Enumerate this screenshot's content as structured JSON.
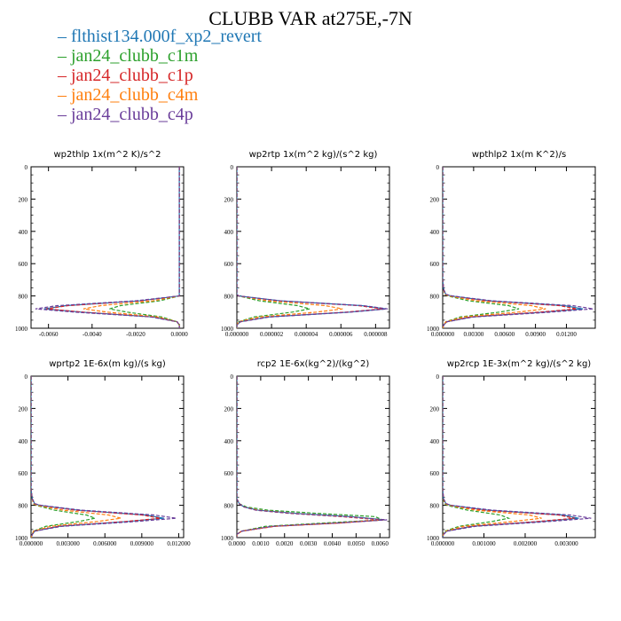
{
  "title": "CLUBB VAR at275E,-7N",
  "legend": [
    {
      "name": "flthist134.000f_xp2_revert",
      "color": "#1f77b4",
      "style": "solid"
    },
    {
      "name": "jan24_clubb_c1m",
      "color": "#2ca02c",
      "style": "dashed"
    },
    {
      "name": "jan24_clubb_c1p",
      "color": "#d62728",
      "style": "dashed"
    },
    {
      "name": "jan24_clubb_c4m",
      "color": "#ff7f0e",
      "style": "dashed"
    },
    {
      "name": "jan24_clubb_c4p",
      "color": "#6a3d9a",
      "style": "dashed"
    }
  ],
  "chart_data": [
    {
      "type": "line",
      "title": "wp2thlp  1x(m^2 K)/s^2",
      "xlim": [
        -0.0068,
        0.0002
      ],
      "ylim": [
        1000,
        0
      ],
      "y_reversed": true,
      "xticks": [
        -0.006,
        -0.004,
        -0.002,
        0.0
      ],
      "xtick_labels": [
        "-0.0060",
        "-0.0040",
        "-0.0020",
        "0.0000"
      ],
      "yticks": [
        0,
        200,
        400,
        600,
        800,
        1000
      ],
      "ytick_labels": [
        "0",
        "200",
        "400",
        "600",
        "800",
        "1000"
      ],
      "y": [
        0,
        100,
        200,
        300,
        400,
        500,
        600,
        700,
        760,
        790,
        800,
        830,
        860,
        880,
        900,
        930,
        960,
        980,
        1000
      ],
      "series": [
        {
          "name": "flthist134.000f_xp2_revert",
          "values": [
            0.0,
            0.0,
            0.0,
            0.0,
            0.0,
            0.0,
            0.0,
            0.0,
            0.0,
            0.0,
            0.0,
            -0.0018,
            -0.0052,
            -0.0062,
            -0.0045,
            -0.0012,
            -0.0001,
            0.0,
            0.0
          ]
        },
        {
          "name": "jan24_clubb_c1m",
          "values": [
            0.0,
            0.0,
            0.0,
            0.0,
            0.0,
            0.0,
            0.0,
            0.0,
            0.0,
            0.0,
            0.0,
            -0.0009,
            -0.0027,
            -0.0032,
            -0.0024,
            -0.0008,
            -0.0001,
            0.0,
            0.0
          ]
        },
        {
          "name": "jan24_clubb_c1p",
          "values": [
            0.0,
            0.0,
            0.0,
            0.0,
            0.0,
            0.0,
            0.0,
            0.0,
            0.0,
            0.0,
            0.0,
            -0.0018,
            -0.0051,
            -0.0061,
            -0.0044,
            -0.0012,
            -0.0001,
            0.0,
            0.0
          ]
        },
        {
          "name": "jan24_clubb_c4m",
          "values": [
            0.0,
            0.0,
            0.0,
            0.0,
            0.0,
            0.0,
            0.0,
            0.0,
            0.0,
            0.0,
            0.0,
            -0.0012,
            -0.0036,
            -0.0044,
            -0.0033,
            -0.001,
            -0.0001,
            0.0,
            0.0
          ]
        },
        {
          "name": "jan24_clubb_c4p",
          "values": [
            0.0,
            0.0,
            0.0,
            0.0,
            0.0,
            0.0,
            0.0,
            0.0,
            0.0,
            0.0,
            0.0,
            -0.002,
            -0.0056,
            -0.0066,
            -0.0048,
            -0.0013,
            -0.0001,
            0.0,
            0.0
          ]
        }
      ]
    },
    {
      "type": "line",
      "title": "wp2rtp  1x(m^2 kg)/(s^2 kg)",
      "xlim": [
        0.0,
        8.8e-06
      ],
      "ylim": [
        1000,
        0
      ],
      "y_reversed": true,
      "xticks": [
        0.0,
        2e-06,
        4e-06,
        6e-06,
        8e-06
      ],
      "xtick_labels": [
        "0.000000",
        "0.000002",
        "0.000004",
        "0.000006",
        "0.000008"
      ],
      "yticks": [
        0,
        200,
        400,
        600,
        800,
        1000
      ],
      "ytick_labels": [
        "0",
        "200",
        "400",
        "600",
        "800",
        "1000"
      ],
      "y": [
        0,
        100,
        200,
        300,
        400,
        500,
        600,
        700,
        760,
        790,
        800,
        830,
        860,
        880,
        900,
        930,
        960,
        980,
        1000
      ],
      "series": [
        {
          "name": "flthist134.000f_xp2_revert",
          "values": [
            0,
            0,
            0,
            0,
            0,
            0,
            0,
            0,
            0,
            0,
            1e-07,
            2.5e-06,
            7.2e-06,
            8.6e-06,
            6.5e-06,
            1.8e-06,
            2e-07,
            0,
            0
          ]
        },
        {
          "name": "jan24_clubb_c1m",
          "values": [
            0,
            0,
            0,
            0,
            0,
            0,
            0,
            0,
            0,
            0,
            1e-07,
            1.3e-06,
            3.5e-06,
            4.2e-06,
            3.2e-06,
            1e-06,
            1e-07,
            0,
            0
          ]
        },
        {
          "name": "jan24_clubb_c1p",
          "values": [
            0,
            0,
            0,
            0,
            0,
            0,
            0,
            0,
            0,
            0,
            1e-07,
            2.4e-06,
            7e-06,
            8.4e-06,
            6.3e-06,
            1.8e-06,
            2e-07,
            0,
            0
          ]
        },
        {
          "name": "jan24_clubb_c4m",
          "values": [
            0,
            0,
            0,
            0,
            0,
            0,
            0,
            0,
            0,
            0,
            1e-07,
            1.8e-06,
            5.1e-06,
            6.1e-06,
            4.6e-06,
            1.3e-06,
            1e-07,
            0,
            0
          ]
        },
        {
          "name": "jan24_clubb_c4p",
          "values": [
            0,
            0,
            0,
            0,
            0,
            0,
            0,
            0,
            0,
            0,
            1e-07,
            2.5e-06,
            7.3e-06,
            8.7e-06,
            6.6e-06,
            1.9e-06,
            2e-07,
            0,
            0
          ]
        }
      ]
    },
    {
      "type": "line",
      "title": "wpthlp2  1x(m K^2)/s",
      "xlim": [
        0.0,
        0.0148
      ],
      "ylim": [
        1000,
        0
      ],
      "y_reversed": true,
      "xticks": [
        0.0,
        0.003,
        0.006,
        0.009,
        0.012
      ],
      "xtick_labels": [
        "0.000000",
        "0.00300",
        "0.00600",
        "0.00900",
        "0.01200"
      ],
      "yticks": [
        0,
        200,
        400,
        600,
        800,
        1000
      ],
      "ytick_labels": [
        "0",
        "200",
        "400",
        "600",
        "800",
        "1000"
      ],
      "y": [
        0,
        100,
        200,
        300,
        400,
        500,
        600,
        700,
        760,
        790,
        800,
        830,
        860,
        880,
        900,
        930,
        960,
        980,
        1000
      ],
      "series": [
        {
          "name": "flthist134.000f_xp2_revert",
          "values": [
            0,
            0,
            0,
            0,
            0,
            0,
            0,
            0,
            0.0001,
            0.0003,
            0.0008,
            0.0045,
            0.0118,
            0.0136,
            0.0098,
            0.0028,
            0.0004,
            0.0001,
            0
          ]
        },
        {
          "name": "jan24_clubb_c1m",
          "values": [
            0,
            0,
            0,
            0,
            0,
            0,
            0,
            0,
            0.0001,
            0.0002,
            0.0005,
            0.0025,
            0.0064,
            0.0074,
            0.0055,
            0.0017,
            0.0003,
            0.0001,
            0
          ]
        },
        {
          "name": "jan24_clubb_c1p",
          "values": [
            0,
            0,
            0,
            0,
            0,
            0,
            0,
            0,
            0.0001,
            0.0003,
            0.0008,
            0.0043,
            0.0113,
            0.013,
            0.0094,
            0.0027,
            0.0004,
            0.0001,
            0
          ]
        },
        {
          "name": "jan24_clubb_c4m",
          "values": [
            0,
            0,
            0,
            0,
            0,
            0,
            0,
            0,
            0.0001,
            0.0002,
            0.0006,
            0.0033,
            0.0086,
            0.01,
            0.0073,
            0.0021,
            0.0003,
            0.0001,
            0
          ]
        },
        {
          "name": "jan24_clubb_c4p",
          "values": [
            0,
            0,
            0,
            0,
            0,
            0,
            0,
            0,
            0.0001,
            0.0003,
            0.0009,
            0.0048,
            0.0126,
            0.0146,
            0.0105,
            0.003,
            0.0004,
            0.0001,
            0
          ]
        }
      ]
    },
    {
      "type": "line",
      "title": "wprtp2  1E-6x(m kg)/(s kg)",
      "xlim": [
        0.0,
        0.0124
      ],
      "ylim": [
        1000,
        0
      ],
      "y_reversed": true,
      "xticks": [
        0.0,
        0.003,
        0.006,
        0.009,
        0.012
      ],
      "xtick_labels": [
        "0.000000",
        "0.003000",
        "0.006000",
        "0.009000",
        "0.012000"
      ],
      "yticks": [
        0,
        200,
        400,
        600,
        800,
        1000
      ],
      "ytick_labels": [
        "0",
        "200",
        "400",
        "600",
        "800",
        "1000"
      ],
      "y": [
        0,
        100,
        200,
        300,
        400,
        500,
        600,
        700,
        760,
        790,
        800,
        830,
        860,
        880,
        900,
        930,
        960,
        980,
        1000
      ],
      "series": [
        {
          "name": "flthist134.000f_xp2_revert",
          "values": [
            0,
            0,
            0,
            0,
            0,
            0,
            0,
            0,
            0.0001,
            0.0003,
            0.0007,
            0.0038,
            0.0093,
            0.0108,
            0.0079,
            0.0023,
            0.0003,
            0.0001,
            0
          ]
        },
        {
          "name": "jan24_clubb_c1m",
          "values": [
            0,
            0,
            0,
            0,
            0,
            0,
            0,
            0,
            0.0001,
            0.0002,
            0.0004,
            0.0019,
            0.0045,
            0.0052,
            0.0039,
            0.0012,
            0.0002,
            0.0001,
            0
          ]
        },
        {
          "name": "jan24_clubb_c1p",
          "values": [
            0,
            0,
            0,
            0,
            0,
            0,
            0,
            0,
            0.0001,
            0.0003,
            0.0007,
            0.0036,
            0.009,
            0.0105,
            0.0077,
            0.0022,
            0.0003,
            0.0001,
            0
          ]
        },
        {
          "name": "jan24_clubb_c4m",
          "values": [
            0,
            0,
            0,
            0,
            0,
            0,
            0,
            0,
            0.0001,
            0.0002,
            0.0005,
            0.0026,
            0.0063,
            0.0073,
            0.0054,
            0.0016,
            0.0002,
            0.0001,
            0
          ]
        },
        {
          "name": "jan24_clubb_c4p",
          "values": [
            0,
            0,
            0,
            0,
            0,
            0,
            0,
            0,
            0.0001,
            0.0003,
            0.0008,
            0.0041,
            0.01,
            0.0118,
            0.0086,
            0.0025,
            0.0003,
            0.0001,
            0
          ]
        }
      ]
    },
    {
      "type": "line",
      "title": "rcp2  1E-6x(kg^2)/(kg^2)",
      "xlim": [
        0.0,
        0.0064
      ],
      "ylim": [
        1000,
        0
      ],
      "y_reversed": true,
      "xticks": [
        0.0,
        0.001,
        0.002,
        0.003,
        0.004,
        0.005,
        0.006
      ],
      "xtick_labels": [
        "0.0000",
        "0.0010",
        "0.0020",
        "0.0030",
        "0.0040",
        "0.0050",
        "0.0060"
      ],
      "yticks": [
        0,
        200,
        400,
        600,
        800,
        1000
      ],
      "ytick_labels": [
        "0",
        "200",
        "400",
        "600",
        "800",
        "1000"
      ],
      "y": [
        0,
        100,
        200,
        300,
        400,
        500,
        600,
        700,
        760,
        790,
        810,
        830,
        850,
        870,
        890,
        910,
        930,
        960,
        980,
        1000
      ],
      "series": [
        {
          "name": "flthist134.000f_xp2_revert",
          "values": [
            0,
            0,
            0,
            0,
            0,
            0,
            0,
            0,
            0,
            0.0001,
            0.0003,
            0.0009,
            0.0025,
            0.0048,
            0.0062,
            0.0041,
            0.0015,
            0.0002,
            0,
            0
          ]
        },
        {
          "name": "jan24_clubb_c1m",
          "values": [
            0,
            0,
            0,
            0,
            0,
            0,
            0,
            0,
            0,
            0.0001,
            0.0004,
            0.0013,
            0.0034,
            0.0058,
            0.0061,
            0.0036,
            0.0012,
            0.0002,
            0,
            0
          ]
        },
        {
          "name": "jan24_clubb_c1p",
          "values": [
            0,
            0,
            0,
            0,
            0,
            0,
            0,
            0,
            0,
            0.0001,
            0.0003,
            0.0008,
            0.0022,
            0.0044,
            0.006,
            0.0043,
            0.0016,
            0.0002,
            0,
            0
          ]
        },
        {
          "name": "jan24_clubb_c4m",
          "values": [
            0,
            0,
            0,
            0,
            0,
            0,
            0,
            0,
            0,
            0.0001,
            0.0003,
            0.0009,
            0.0024,
            0.0047,
            0.0062,
            0.0042,
            0.0015,
            0.0002,
            0,
            0
          ]
        },
        {
          "name": "jan24_clubb_c4p",
          "values": [
            0,
            0,
            0,
            0,
            0,
            0,
            0,
            0,
            0,
            0.0001,
            0.0003,
            0.0008,
            0.0023,
            0.0046,
            0.0063,
            0.0042,
            0.0015,
            0.0002,
            0,
            0
          ]
        }
      ]
    },
    {
      "type": "line",
      "title": "wp2rcp  1E-3x(m^2 kg)/(s^2 kg)",
      "xlim": [
        0.0,
        0.0037
      ],
      "ylim": [
        1000,
        0
      ],
      "y_reversed": true,
      "xticks": [
        0.0,
        0.001,
        0.002,
        0.003
      ],
      "xtick_labels": [
        "0.000000",
        "0.001000",
        "0.002000",
        "0.003000"
      ],
      "yticks": [
        0,
        200,
        400,
        600,
        800,
        1000
      ],
      "ytick_labels": [
        "0",
        "200",
        "400",
        "600",
        "800",
        "1000"
      ],
      "y": [
        0,
        100,
        200,
        300,
        400,
        500,
        600,
        700,
        760,
        790,
        800,
        830,
        860,
        880,
        900,
        930,
        960,
        980,
        1000
      ],
      "series": [
        {
          "name": "flthist134.000f_xp2_revert",
          "values": [
            0,
            0,
            0,
            0,
            0,
            0,
            0,
            0,
            2e-05,
            8e-05,
            0.0002,
            0.0011,
            0.0029,
            0.0033,
            0.0024,
            0.0007,
            0.0001,
            2e-05,
            0
          ]
        },
        {
          "name": "jan24_clubb_c1m",
          "values": [
            0,
            0,
            0,
            0,
            0,
            0,
            0,
            0,
            1e-05,
            5e-05,
            0.0001,
            0.0006,
            0.0014,
            0.0016,
            0.0012,
            0.0004,
            5e-05,
            1e-05,
            0
          ]
        },
        {
          "name": "jan24_clubb_c1p",
          "values": [
            0,
            0,
            0,
            0,
            0,
            0,
            0,
            0,
            2e-05,
            8e-05,
            0.0002,
            0.001,
            0.0028,
            0.0032,
            0.0023,
            0.0007,
            0.0001,
            2e-05,
            0
          ]
        },
        {
          "name": "jan24_clubb_c4m",
          "values": [
            0,
            0,
            0,
            0,
            0,
            0,
            0,
            0,
            2e-05,
            6e-05,
            0.00015,
            0.0008,
            0.0021,
            0.0024,
            0.0017,
            0.0005,
            8e-05,
            1e-05,
            0
          ]
        },
        {
          "name": "jan24_clubb_c4p",
          "values": [
            0,
            0,
            0,
            0,
            0,
            0,
            0,
            0,
            2e-05,
            9e-05,
            0.0002,
            0.0012,
            0.0031,
            0.0036,
            0.0026,
            0.0008,
            0.0001,
            2e-05,
            0
          ]
        }
      ]
    }
  ]
}
